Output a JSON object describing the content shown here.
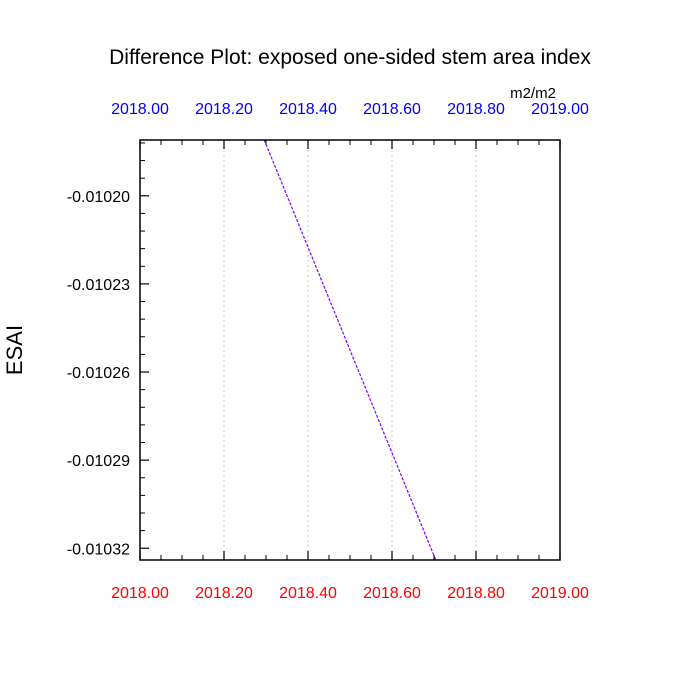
{
  "chart_data": {
    "type": "line",
    "title": "Difference Plot: exposed one-sided stem area index",
    "units": "m2/m2",
    "ylabel": "ESAI",
    "xlabel": "",
    "xlim": [
      2018.0,
      2019.0
    ],
    "ylim": [
      -0.010324,
      -0.010181
    ],
    "x_ticks": [
      2018.0,
      2018.2,
      2018.4,
      2018.6,
      2018.8,
      2019.0
    ],
    "x_tick_labels": [
      "2018.00",
      "2018.20",
      "2018.40",
      "2018.60",
      "2018.80",
      "2019.00"
    ],
    "y_ticks": [
      -0.0102,
      -0.01023,
      -0.01026,
      -0.01029,
      -0.01032
    ],
    "y_tick_labels": [
      "-0.01020",
      "-0.01023",
      "-0.01026",
      "-0.01029",
      "-0.01032"
    ],
    "x_gridlines": [
      2018.2,
      2018.4,
      2018.6,
      2018.8
    ],
    "grid": "x-dotted",
    "colors": {
      "top_axis_labels": "#0000ff",
      "bottom_axis_labels": "#ff0000",
      "line": "#7f00ff",
      "grid": "#c8c8c8"
    },
    "series": [
      {
        "style": "dashed",
        "x": [
          2018.2958,
          2018.7042
        ],
        "y": [
          -0.010181,
          -0.010324
        ]
      }
    ]
  }
}
